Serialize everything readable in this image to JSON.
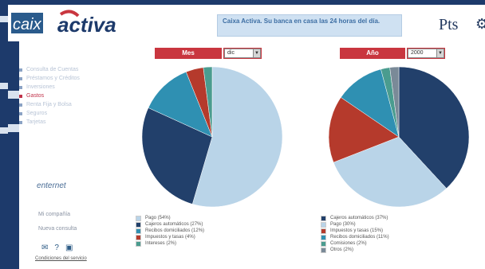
{
  "header": {
    "logo_part1": "caix",
    "logo_part2": "activa",
    "logo_sub": "",
    "banner_text": "Caixa Activa. Su banca en casa las 24 horas del día.",
    "pts_label": "Pts"
  },
  "sidebar": {
    "menu": [
      {
        "label": "Consulta de Cuentas",
        "active": false
      },
      {
        "label": "Préstamos y Créditos",
        "active": false
      },
      {
        "label": "Inversiones",
        "active": false
      },
      {
        "label": "Gastos",
        "active": true
      },
      {
        "label": "Renta Fija y Bolsa",
        "active": false
      },
      {
        "label": "Seguros",
        "active": false
      },
      {
        "label": "Tarjetas",
        "active": false
      }
    ],
    "enternet_prefix": "e",
    "enternet_word": "nternet",
    "link_1": "Mi compañía",
    "link_2": "Nueva consulta",
    "footer": "Condiciones del servicio"
  },
  "left_panel": {
    "title": "Mes",
    "select_value": "dic",
    "legend": [
      {
        "label": "Pago (54%)",
        "color": "#b9d4e8"
      },
      {
        "label": "Cajeros automáticos (27%)",
        "color": "#22406b"
      },
      {
        "label": "Recibos domiciliados (12%)",
        "color": "#2f90b2"
      },
      {
        "label": "Impuestos y tasas (4%)",
        "color": "#b53a2c"
      },
      {
        "label": "Intereses (2%)",
        "color": "#4a9c8f"
      }
    ]
  },
  "right_panel": {
    "title": "Año",
    "select_value": "2000",
    "legend": [
      {
        "label": "Cajeros automáticos (37%)",
        "color": "#22406b"
      },
      {
        "label": "Pago (30%)",
        "color": "#b9d4e8"
      },
      {
        "label": "Impuestos y tasas (15%)",
        "color": "#b53a2c"
      },
      {
        "label": "Recibos domiciliados (11%)",
        "color": "#2f90b2"
      },
      {
        "label": "Comisiones (2%)",
        "color": "#4a9c8f"
      },
      {
        "label": "Otros (2%)",
        "color": "#7a8a98"
      }
    ]
  },
  "chart_data": [
    {
      "type": "pie",
      "title": "Mes",
      "categories": [
        "Pago",
        "Cajeros automáticos",
        "Recibos domiciliados",
        "Impuestos y tasas",
        "Intereses"
      ],
      "values": [
        54,
        27,
        12,
        4,
        2
      ],
      "colors": [
        "#b9d4e8",
        "#22406b",
        "#2f90b2",
        "#b53a2c",
        "#4a9c8f"
      ]
    },
    {
      "type": "pie",
      "title": "Año",
      "categories": [
        "Cajeros automáticos",
        "Pago",
        "Impuestos y tasas",
        "Recibos domiciliados",
        "Comisiones",
        "Otros"
      ],
      "values": [
        37,
        30,
        15,
        11,
        2,
        2
      ],
      "colors": [
        "#22406b",
        "#b9d4e8",
        "#b53a2c",
        "#2f90b2",
        "#4a9c8f",
        "#7a8a98"
      ]
    }
  ]
}
